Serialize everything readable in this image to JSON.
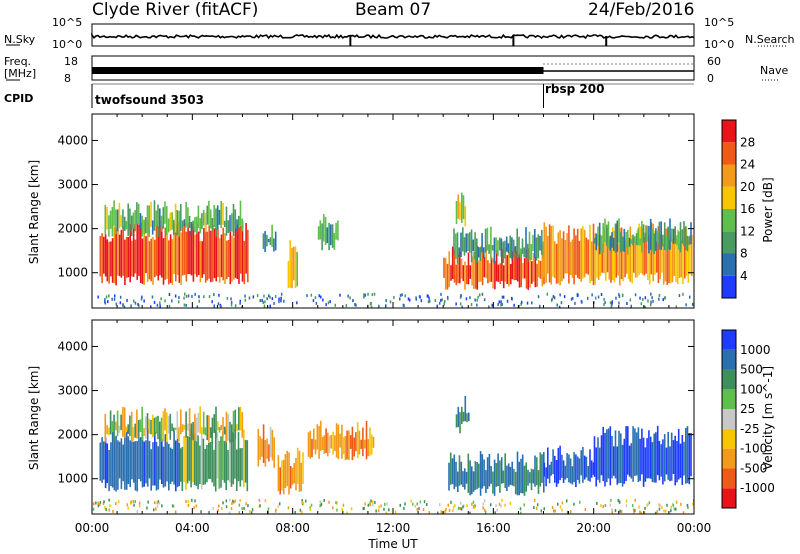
{
  "header": {
    "station": "Clyde River (fitACF)",
    "beam": "Beam 07",
    "date": "24/Feb/2016"
  },
  "summary_panels": {
    "nsky_label": "N.Sky",
    "nsky_ticks": [
      "10^5",
      "10^0"
    ],
    "nsearch_label": "N.Search",
    "nsearch_ticks": [
      "10^5",
      "10^0"
    ],
    "freq_label_1": "Freq.",
    "freq_label_2": "[MHz]",
    "freq_ticks": [
      "18",
      "8"
    ],
    "nave_label": "Nave",
    "nave_ticks": [
      "60",
      "0"
    ],
    "cpid_label": "CPID",
    "cpid_entries": [
      {
        "name": "twofsound 3503",
        "start_hour": 0
      },
      {
        "name": "rbsp 200",
        "start_hour": 18
      }
    ]
  },
  "time_axis": {
    "label": "Time UT",
    "ticks": [
      "00:00",
      "04:00",
      "08:00",
      "12:00",
      "16:00",
      "20:00",
      "00:00"
    ],
    "range_hours": [
      0,
      24
    ]
  },
  "chart_data": [
    {
      "type": "heatmap",
      "name": "power",
      "ylabel": "Slant Range [km]",
      "yticks": [
        "1000",
        "2000",
        "3000",
        "4000"
      ],
      "ylim": [
        200,
        4600
      ],
      "colorbar_label": "Power [dB]",
      "colorbar_ticks": [
        "4",
        "8",
        "12",
        "16",
        "20",
        "24",
        "28"
      ],
      "colorbar_range": [
        0,
        32
      ],
      "colors": [
        "#1e3cff",
        "#2a6fb0",
        "#4a9a62",
        "#5fbf4a",
        "#f7c600",
        "#f29a1a",
        "#f05a18",
        "#e8141a"
      ],
      "regions": [
        {
          "t": [
            0.3,
            6.2
          ],
          "r": [
            800,
            1950
          ],
          "level": 27
        },
        {
          "t": [
            0.5,
            6.0
          ],
          "r": [
            1900,
            2400
          ],
          "level": 12
        },
        {
          "t": [
            6.8,
            7.3
          ],
          "r": [
            1500,
            2000
          ],
          "level": 10
        },
        {
          "t": [
            7.8,
            8.2
          ],
          "r": [
            700,
            1500
          ],
          "level": 18
        },
        {
          "t": [
            9.0,
            9.8
          ],
          "r": [
            1600,
            2100
          ],
          "level": 11
        },
        {
          "t": [
            14.0,
            18.0
          ],
          "r": [
            700,
            1400
          ],
          "level": 26
        },
        {
          "t": [
            14.4,
            18.0
          ],
          "r": [
            1300,
            1800
          ],
          "level": 9
        },
        {
          "t": [
            18.0,
            23.9
          ],
          "r": [
            800,
            1900
          ],
          "level": 22
        },
        {
          "t": [
            20.0,
            23.9
          ],
          "r": [
            1500,
            2000
          ],
          "level": 10
        },
        {
          "t": [
            14.5,
            14.9
          ],
          "r": [
            2100,
            2600
          ],
          "level": 16
        }
      ]
    },
    {
      "type": "heatmap",
      "name": "velocity",
      "ylabel": "Slant Range [km]",
      "yticks": [
        "1000",
        "2000",
        "3000",
        "4000"
      ],
      "ylim": [
        200,
        4600
      ],
      "colorbar_label": "Velocity [m s^-1]",
      "colorbar_ticks": [
        "1000",
        "500",
        "100",
        "25",
        "-25",
        "-100",
        "-500",
        "-1000"
      ],
      "colors": [
        "#1e3cff",
        "#2a6fb0",
        "#3e8f5c",
        "#5fbf4a",
        "#c8c8c8",
        "#f7c600",
        "#f29a1a",
        "#f05a18",
        "#e8141a"
      ],
      "regions": [
        {
          "t": [
            0.3,
            3.5
          ],
          "r": [
            800,
            1900
          ],
          "v": 800
        },
        {
          "t": [
            3.5,
            6.2
          ],
          "r": [
            800,
            1900
          ],
          "v": 200
        },
        {
          "t": [
            0.5,
            6.0
          ],
          "r": [
            1900,
            2400
          ],
          "v": 50
        },
        {
          "t": [
            6.6,
            7.3
          ],
          "r": [
            1300,
            2000
          ],
          "v": -300
        },
        {
          "t": [
            7.4,
            8.4
          ],
          "r": [
            700,
            1500
          ],
          "v": -300
        },
        {
          "t": [
            8.6,
            11.2
          ],
          "r": [
            1500,
            2100
          ],
          "v": -300
        },
        {
          "t": [
            14.2,
            18.0
          ],
          "r": [
            700,
            1400
          ],
          "v": 600
        },
        {
          "t": [
            18.0,
            20.0
          ],
          "r": [
            900,
            1500
          ],
          "v": 900
        },
        {
          "t": [
            20.0,
            23.9
          ],
          "r": [
            900,
            1950
          ],
          "v": 1000
        },
        {
          "t": [
            14.5,
            15.0
          ],
          "r": [
            2100,
            2700
          ],
          "v": 600
        }
      ]
    }
  ]
}
